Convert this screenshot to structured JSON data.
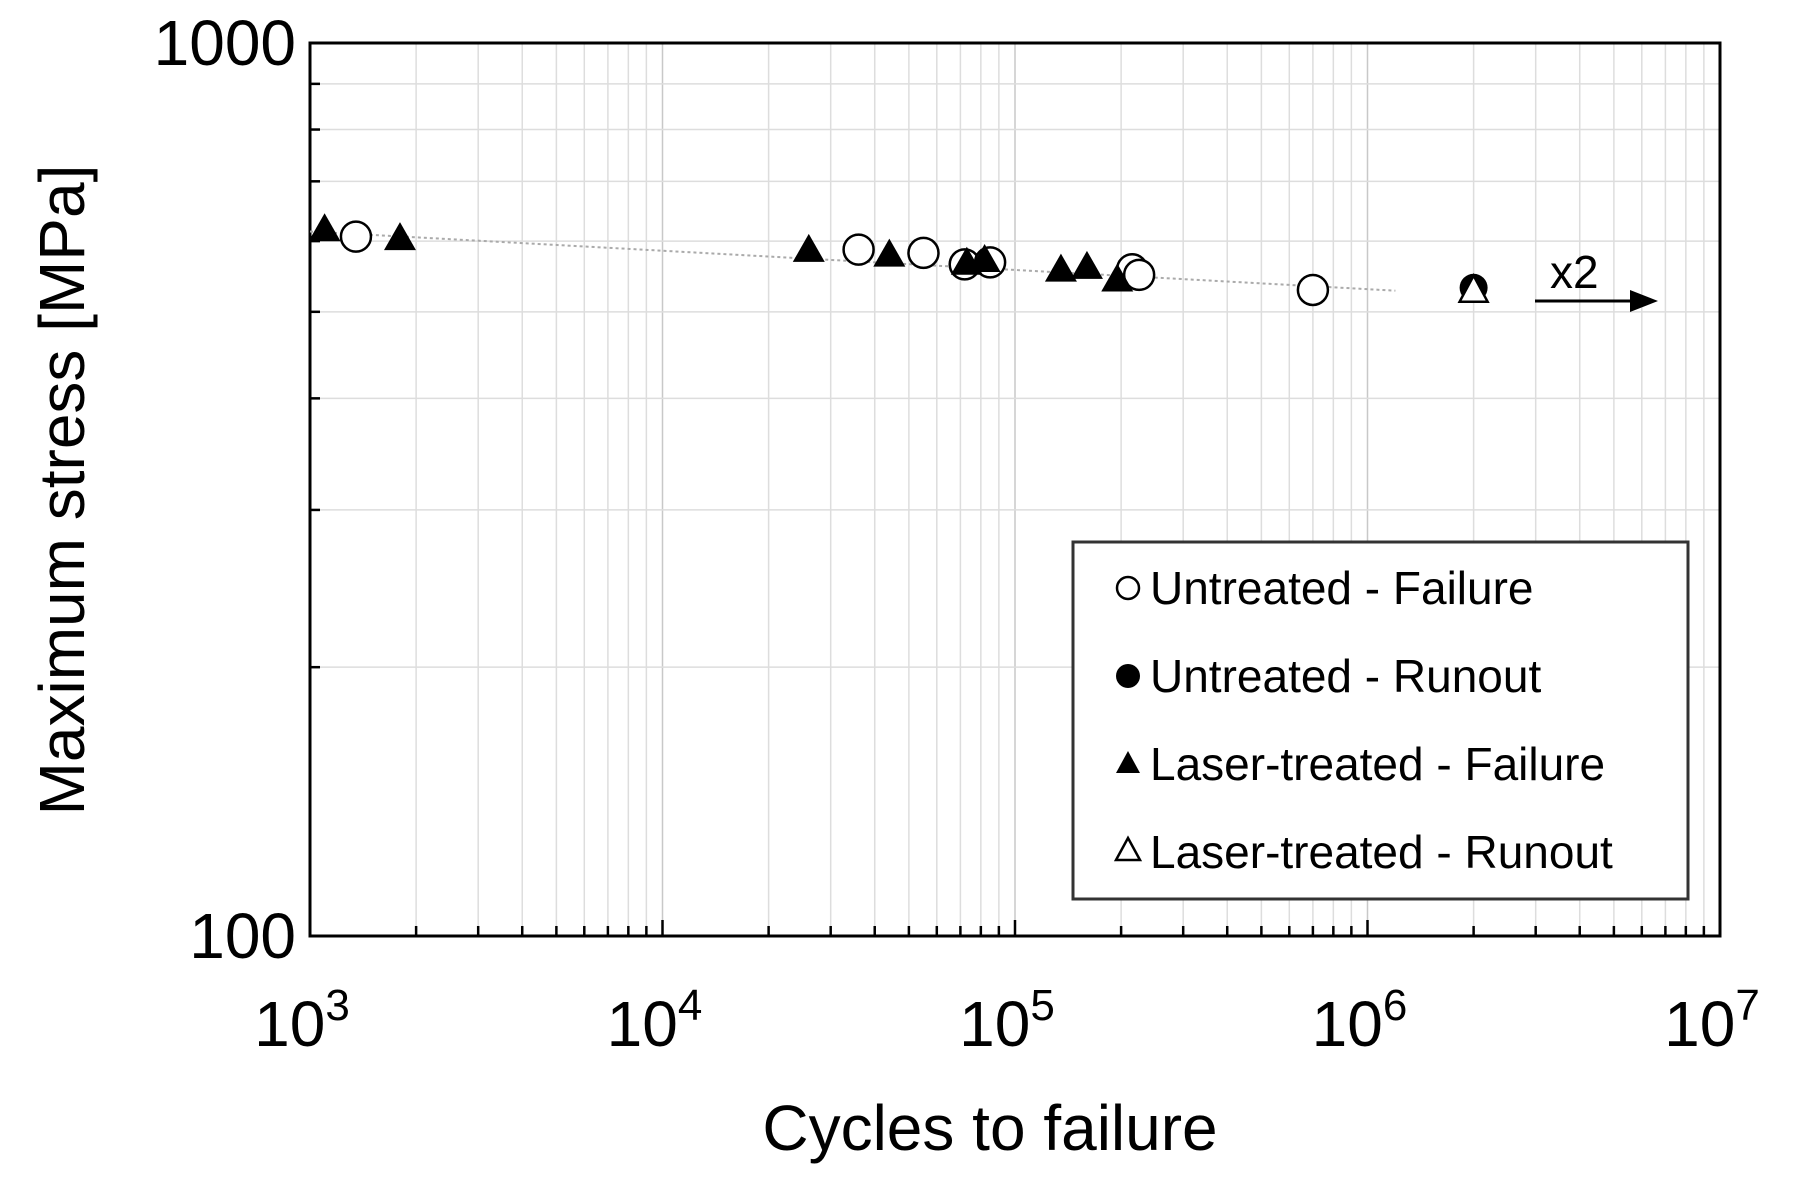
{
  "chart_data": {
    "type": "scatter",
    "title": "",
    "xlabel": "Cycles to failure",
    "ylabel": "Maximum stress [MPa]",
    "xscale": "log",
    "yscale": "log",
    "xlim": [
      1000,
      10000000
    ],
    "ylim": [
      100,
      1000
    ],
    "x_tick_labels": [
      {
        "base": "10",
        "exp": "3",
        "value": 1000
      },
      {
        "base": "10",
        "exp": "4",
        "value": 10000
      },
      {
        "base": "10",
        "exp": "5",
        "value": 100000
      },
      {
        "base": "10",
        "exp": "6",
        "value": 1000000
      },
      {
        "base": "10",
        "exp": "7",
        "value": 10000000
      }
    ],
    "y_tick_labels": [
      {
        "text": "1000",
        "value": 1000
      },
      {
        "text": "100",
        "value": 100
      }
    ],
    "grid": true,
    "legend_position": "bottom-right",
    "series": [
      {
        "name": "Untreated - Failure",
        "marker": "circle-open",
        "points": [
          {
            "x": 1350,
            "y": 607
          },
          {
            "x": 36000,
            "y": 587
          },
          {
            "x": 55000,
            "y": 582
          },
          {
            "x": 72000,
            "y": 565
          },
          {
            "x": 85000,
            "y": 568
          },
          {
            "x": 215000,
            "y": 558
          },
          {
            "x": 225000,
            "y": 550
          },
          {
            "x": 700000,
            "y": 529
          }
        ]
      },
      {
        "name": "Untreated - Runout",
        "marker": "circle-filled",
        "points": [
          {
            "x": 2000000,
            "y": 532
          }
        ]
      },
      {
        "name": "Laser-treated - Failure",
        "marker": "triangle-filled",
        "points": [
          {
            "x": 1100,
            "y": 617
          },
          {
            "x": 1800,
            "y": 603
          },
          {
            "x": 26000,
            "y": 585
          },
          {
            "x": 44000,
            "y": 578
          },
          {
            "x": 73000,
            "y": 566
          },
          {
            "x": 82000,
            "y": 570
          },
          {
            "x": 135000,
            "y": 556
          },
          {
            "x": 160000,
            "y": 560
          },
          {
            "x": 195000,
            "y": 542
          }
        ]
      },
      {
        "name": "Laser-treated - Runout",
        "marker": "triangle-open",
        "points": [
          {
            "x": 2000000,
            "y": 528
          }
        ]
      }
    ],
    "trendline": {
      "style": "dotted",
      "color": "#aaaaaa",
      "points": [
        {
          "x": 1000,
          "y": 615
        },
        {
          "x": 1200000,
          "y": 528
        }
      ]
    },
    "annotations": [
      {
        "text": "x2",
        "type": "arrow-right",
        "anchor_x": 3000000,
        "anchor_y": 532
      }
    ]
  },
  "colors": {
    "axis": "#000000",
    "grid": "#dddddd",
    "marker": "#000000",
    "legend_border": "#333333"
  }
}
